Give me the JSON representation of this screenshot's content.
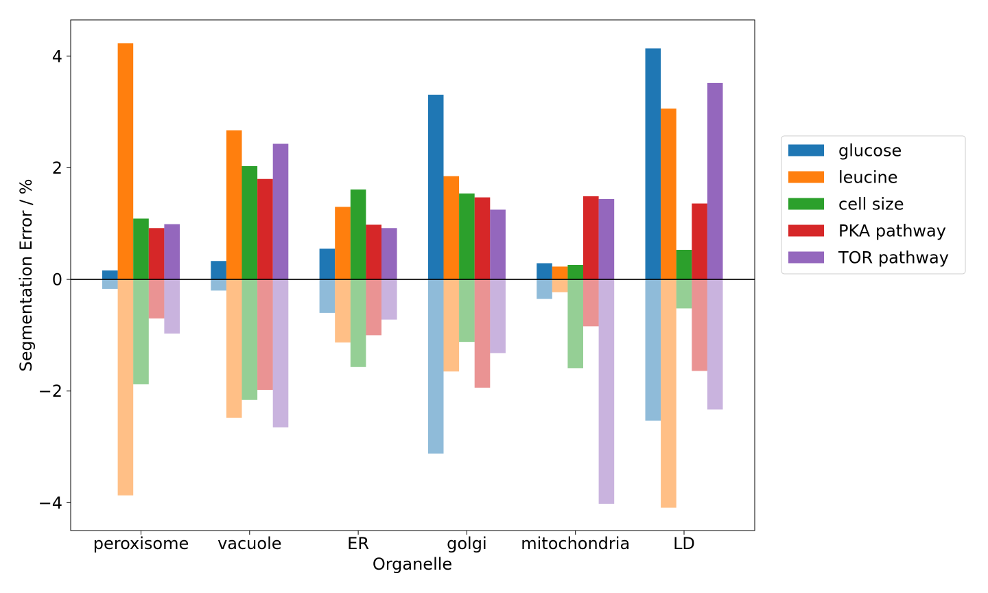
{
  "chart_data": {
    "type": "bar",
    "xlabel": "Organelle",
    "ylabel": "Segmentation Error / %",
    "ylim": [
      -4.5,
      4.65
    ],
    "yticks": [
      4,
      2,
      0,
      -2,
      -4
    ],
    "ytick_labels": [
      "4",
      "2",
      "0",
      "−2",
      "−4"
    ],
    "categories": [
      "peroxisome",
      "vacuole",
      "ER",
      "golgi",
      "mitochondria",
      "LD"
    ],
    "zero_line": true,
    "legend_position": "right",
    "series": [
      {
        "name": "glucose",
        "color": "#1f77b4",
        "positive": [
          0.16,
          0.33,
          0.55,
          3.31,
          0.29,
          4.14
        ],
        "negative": [
          -0.17,
          -0.2,
          -0.6,
          -3.12,
          -0.35,
          -2.53
        ]
      },
      {
        "name": "leucine",
        "color": "#ff7f0e",
        "positive": [
          4.23,
          2.67,
          1.3,
          1.85,
          0.23,
          3.06
        ],
        "negative": [
          -3.87,
          -2.48,
          -1.13,
          -1.65,
          -0.23,
          -4.09
        ]
      },
      {
        "name": "cell size",
        "color": "#2ca02c",
        "positive": [
          1.09,
          2.03,
          1.61,
          1.54,
          0.26,
          0.53
        ],
        "negative": [
          -1.88,
          -2.16,
          -1.57,
          -1.12,
          -1.59,
          -0.52
        ]
      },
      {
        "name": "PKA pathway",
        "color": "#d62728",
        "positive": [
          0.92,
          1.8,
          0.98,
          1.47,
          1.49,
          1.36
        ],
        "negative": [
          -0.7,
          -1.98,
          -1.0,
          -1.94,
          -0.84,
          -1.64
        ]
      },
      {
        "name": "TOR pathway",
        "color": "#9467bd",
        "positive": [
          0.99,
          2.43,
          0.92,
          1.25,
          1.44,
          3.52
        ],
        "negative": [
          -0.97,
          -2.65,
          -0.72,
          -1.32,
          -4.02,
          -2.33
        ]
      }
    ]
  }
}
